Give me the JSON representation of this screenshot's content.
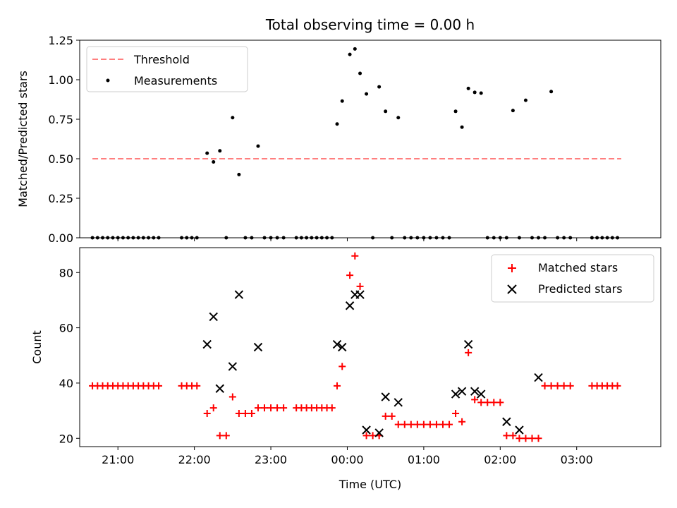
{
  "chart_data": [
    {
      "type": "scatter",
      "panel": "top",
      "title": "Total observing time = 0.00 h",
      "xlabel": "",
      "ylabel": "Matched/Predicted stars",
      "xlim": [
        -3.5,
        4.1
      ],
      "ylim": [
        0.0,
        1.25
      ],
      "yticks": [
        0.0,
        0.25,
        0.5,
        0.75,
        1.0,
        1.25
      ],
      "ytick_labels": [
        "0.00",
        "0.25",
        "0.50",
        "0.75",
        "1.00",
        "1.25"
      ],
      "xticks": [
        -3,
        -2,
        -1,
        0,
        1,
        2,
        3
      ],
      "legend_position": "top-left",
      "series": [
        {
          "name": "Threshold",
          "kind": "dashed-line",
          "color": "#ff7f7f",
          "x": [
            -3.3333,
            3.5833
          ],
          "y": [
            0.5,
            0.5
          ]
        },
        {
          "name": "Measurements",
          "kind": "points",
          "color": "#000000",
          "x": [
            -3.3333,
            -3.2667,
            -3.2,
            -3.1333,
            -3.0667,
            -3.0,
            -2.9333,
            -2.8667,
            -2.8,
            -2.7333,
            -2.6667,
            -2.6,
            -2.5333,
            -2.4667,
            -2.1667,
            -2.1,
            -2.0333,
            -1.9667,
            -1.8333,
            -1.75,
            -1.6667,
            -1.5833,
            -1.5,
            -1.4167,
            -1.3333,
            -1.25,
            -1.1667,
            -1.0833,
            -1.0,
            -0.9167,
            -0.8333,
            -0.6667,
            -0.6,
            -0.5333,
            -0.4667,
            -0.4,
            -0.3333,
            -0.2667,
            -0.2,
            -0.1333,
            -0.0667,
            0.0333,
            0.1,
            0.1667,
            0.25,
            0.3333,
            0.4167,
            0.5,
            0.5833,
            0.6667,
            0.75,
            0.8333,
            0.9167,
            1.0,
            1.0833,
            1.1667,
            1.25,
            1.3333,
            1.4167,
            1.5,
            1.5833,
            1.6667,
            1.75,
            1.8333,
            1.9167,
            2.0,
            2.0833,
            2.1667,
            2.25,
            2.3333,
            2.4167,
            2.5,
            2.5833,
            2.6667,
            2.75,
            2.8333,
            2.9167,
            3.2,
            3.2667,
            3.3333,
            3.4,
            3.4667,
            3.5333
          ],
          "y": [
            0,
            0,
            0,
            0,
            0,
            0,
            0,
            0,
            0,
            0,
            0,
            0,
            0,
            0,
            0,
            0,
            0,
            0,
            0.535,
            0.48,
            0.55,
            0,
            0.76,
            0.4,
            0,
            0,
            0.58,
            0,
            0,
            0,
            0,
            0,
            0,
            0,
            0,
            0,
            0,
            0,
            0,
            0.72,
            0.865,
            1.16,
            1.195,
            1.04,
            0.91,
            0,
            0.955,
            0.8,
            0,
            0.76,
            0,
            0,
            0,
            0,
            0,
            0,
            0,
            0,
            0.8,
            0.7,
            0.945,
            0.92,
            0.915,
            0,
            0,
            0,
            0,
            0.805,
            0,
            0.87,
            0,
            0,
            0,
            0.925,
            0,
            0,
            0,
            0,
            0,
            0,
            0,
            0,
            0
          ]
        }
      ]
    },
    {
      "type": "scatter",
      "panel": "bottom",
      "title": "",
      "xlabel": "Time (UTC)",
      "ylabel": "Count",
      "xlim": [
        -3.5,
        4.1
      ],
      "ylim": [
        17,
        89
      ],
      "yticks": [
        20,
        40,
        60,
        80
      ],
      "xticks": [
        -3,
        -2,
        -1,
        0,
        1,
        2,
        3
      ],
      "xtick_labels": [
        "21:00",
        "22:00",
        "23:00",
        "00:00",
        "01:00",
        "02:00",
        "03:00"
      ],
      "legend_position": "top-right",
      "series": [
        {
          "name": "Matched stars",
          "marker": "plus",
          "color": "#ff0000",
          "x": [
            -3.3333,
            -3.2667,
            -3.2,
            -3.1333,
            -3.0667,
            -3.0,
            -2.9333,
            -2.8667,
            -2.8,
            -2.7333,
            -2.6667,
            -2.6,
            -2.5333,
            -2.4667,
            -2.1667,
            -2.1,
            -2.0333,
            -1.9667,
            -1.8333,
            -1.75,
            -1.6667,
            -1.5833,
            -1.5,
            -1.4167,
            -1.3333,
            -1.25,
            -1.1667,
            -1.0833,
            -1.0,
            -0.9167,
            -0.8333,
            -0.6667,
            -0.6,
            -0.5333,
            -0.4667,
            -0.4,
            -0.3333,
            -0.2667,
            -0.2,
            -0.1333,
            -0.0667,
            0.0333,
            0.1,
            0.1667,
            0.25,
            0.3333,
            0.4167,
            0.5,
            0.5833,
            0.6667,
            0.75,
            0.8333,
            0.9167,
            1.0,
            1.0833,
            1.1667,
            1.25,
            1.3333,
            1.4167,
            1.5,
            1.5833,
            1.6667,
            1.75,
            1.8333,
            1.9167,
            2.0,
            2.0833,
            2.1667,
            2.25,
            2.3333,
            2.4167,
            2.5,
            2.5833,
            2.6667,
            2.75,
            2.8333,
            2.9167,
            3.2,
            3.2667,
            3.3333,
            3.4,
            3.4667,
            3.5333
          ],
          "y": [
            39,
            39,
            39,
            39,
            39,
            39,
            39,
            39,
            39,
            39,
            39,
            39,
            39,
            39,
            39,
            39,
            39,
            39,
            29,
            31,
            21,
            21,
            35,
            29,
            29,
            29,
            31,
            31,
            31,
            31,
            31,
            31,
            31,
            31,
            31,
            31,
            31,
            31,
            31,
            39,
            46,
            79,
            86,
            75,
            21,
            21,
            21,
            28,
            28,
            25,
            25,
            25,
            25,
            25,
            25,
            25,
            25,
            25,
            29,
            26,
            51,
            34,
            33,
            33,
            33,
            33,
            21,
            21,
            20,
            20,
            20,
            20,
            39,
            39,
            39,
            39,
            39,
            39,
            39,
            39,
            39,
            39,
            39
          ]
        },
        {
          "name": "Predicted stars",
          "marker": "x",
          "color": "#000000",
          "x": [
            -1.8333,
            -1.75,
            -1.6667,
            -1.5,
            -1.4167,
            -1.1667,
            -0.1333,
            -0.0667,
            0.0333,
            0.1,
            0.1667,
            0.25,
            0.4167,
            0.5,
            0.6667,
            1.4167,
            1.5,
            1.5833,
            1.6667,
            1.75,
            2.0833,
            2.25,
            2.5
          ],
          "y": [
            54,
            64,
            38,
            46,
            72,
            53,
            54,
            53,
            68,
            72,
            72,
            23,
            22,
            35,
            33,
            36,
            37,
            54,
            37,
            36,
            26,
            23,
            42
          ]
        }
      ]
    }
  ]
}
